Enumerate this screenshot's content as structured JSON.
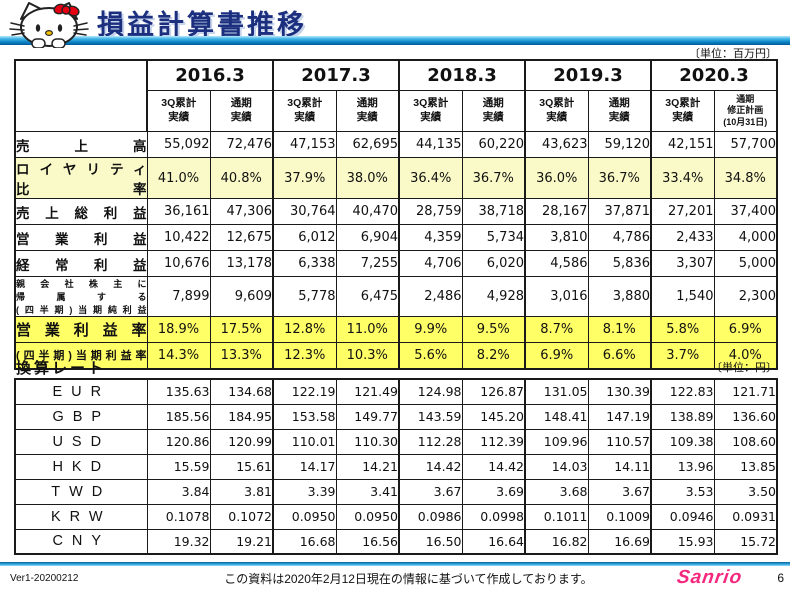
{
  "header": {
    "title": "損益計算書推移"
  },
  "pl_section": {
    "unit_label": "〔単位：百万円〕",
    "years": [
      "2016.3",
      "2017.3",
      "2018.3",
      "2019.3",
      "2020.3"
    ],
    "subcols": [
      [
        "3Q累計",
        "実績"
      ],
      [
        "通期",
        "実績"
      ],
      [
        "3Q累計",
        "実績"
      ],
      [
        "通期",
        "実績"
      ],
      [
        "3Q累計",
        "実績"
      ],
      [
        "通期",
        "実績"
      ],
      [
        "3Q累計",
        "実績"
      ],
      [
        "通期",
        "実績"
      ],
      [
        "3Q累計",
        "実績"
      ],
      [
        "通期",
        "修正計画",
        "(10月31日)"
      ]
    ],
    "rows": [
      {
        "label_lines": [
          "売上高"
        ],
        "row_style": "plain",
        "align": "right",
        "values": [
          "55,092",
          "72,476",
          "47,153",
          "62,695",
          "44,135",
          "60,220",
          "43,623",
          "59,120",
          "42,151",
          "57,700"
        ]
      },
      {
        "label_lines": [
          "ロイヤリティ",
          "比率"
        ],
        "row_style": "pale tall",
        "align": "center",
        "values": [
          "41.0%",
          "40.8%",
          "37.9%",
          "38.0%",
          "36.4%",
          "36.7%",
          "36.0%",
          "36.7%",
          "33.4%",
          "34.8%"
        ]
      },
      {
        "label_lines": [
          "売上総利益"
        ],
        "row_style": "plain",
        "align": "right",
        "values": [
          "36,161",
          "47,306",
          "30,764",
          "40,470",
          "28,759",
          "38,718",
          "28,167",
          "37,871",
          "27,201",
          "37,400"
        ]
      },
      {
        "label_lines": [
          "営業利益"
        ],
        "row_style": "plain",
        "align": "right",
        "values": [
          "10,422",
          "12,675",
          "6,012",
          "6,904",
          "4,359",
          "5,734",
          "3,810",
          "4,786",
          "2,433",
          "4,000"
        ]
      },
      {
        "label_lines": [
          "経常利益"
        ],
        "row_style": "plain",
        "align": "right",
        "values": [
          "10,676",
          "13,178",
          "6,338",
          "7,255",
          "4,706",
          "6,020",
          "4,586",
          "5,836",
          "3,307",
          "5,000"
        ]
      },
      {
        "label_lines": [
          "親会社株主に",
          "帰属する",
          "(四半期)当期純利益"
        ],
        "row_style": "plain tall small-label",
        "align": "right",
        "values": [
          "7,899",
          "9,609",
          "5,778",
          "6,475",
          "2,486",
          "4,928",
          "3,016",
          "3,880",
          "1,540",
          "2,300"
        ]
      },
      {
        "label_lines": [
          "営業利益率"
        ],
        "row_style": "bright big-label",
        "align": "center",
        "values": [
          "18.9%",
          "17.5%",
          "12.8%",
          "11.0%",
          "9.9%",
          "9.5%",
          "8.7%",
          "8.1%",
          "5.8%",
          "6.9%"
        ]
      },
      {
        "label_lines": [
          "(四半期)当期利益率"
        ],
        "row_style": "bright mid-label",
        "align": "center",
        "values": [
          "14.3%",
          "13.3%",
          "12.3%",
          "10.3%",
          "5.6%",
          "8.2%",
          "6.9%",
          "6.6%",
          "3.7%",
          "4.0%"
        ]
      }
    ]
  },
  "fx_section": {
    "title": "換算レート",
    "unit_label": "〔単位：円〕",
    "rows": [
      {
        "label": "EUR",
        "values": [
          "135.63",
          "134.68",
          "122.19",
          "121.49",
          "124.98",
          "126.87",
          "131.05",
          "130.39",
          "122.83",
          "121.71"
        ]
      },
      {
        "label": "GBP",
        "values": [
          "185.56",
          "184.95",
          "153.58",
          "149.77",
          "143.59",
          "145.20",
          "148.41",
          "147.19",
          "138.89",
          "136.60"
        ]
      },
      {
        "label": "USD",
        "values": [
          "120.86",
          "120.99",
          "110.01",
          "110.30",
          "112.28",
          "112.39",
          "109.96",
          "110.57",
          "109.38",
          "108.60"
        ]
      },
      {
        "label": "HKD",
        "values": [
          "15.59",
          "15.61",
          "14.17",
          "14.21",
          "14.42",
          "14.42",
          "14.03",
          "14.11",
          "13.96",
          "13.85"
        ]
      },
      {
        "label": "TWD",
        "values": [
          "3.84",
          "3.81",
          "3.39",
          "3.41",
          "3.67",
          "3.69",
          "3.68",
          "3.67",
          "3.53",
          "3.50"
        ]
      },
      {
        "label": "KRW",
        "values": [
          "0.1078",
          "0.1072",
          "0.0950",
          "0.0950",
          "0.0986",
          "0.0998",
          "0.1011",
          "0.1009",
          "0.0946",
          "0.0931"
        ]
      },
      {
        "label": "CNY",
        "values": [
          "19.32",
          "19.21",
          "16.68",
          "16.56",
          "16.50",
          "16.64",
          "16.82",
          "16.69",
          "15.93",
          "15.72"
        ]
      }
    ]
  },
  "footer": {
    "version": "Ver1-20200212",
    "note": "この資料は2020年2月12日現在の情報に基づいて作成しております。",
    "logo_text": "Sanrio",
    "page_number": "6"
  },
  "colors": {
    "title_navy": "#1b2f7e",
    "pale_yellow": "#fafac8",
    "bright_yellow": "#ffff66",
    "bar_blue": "#0e86c8",
    "sanrio_pink": "#f4287f",
    "bow_red": "#e60012",
    "nose_yellow": "#f5c400"
  }
}
